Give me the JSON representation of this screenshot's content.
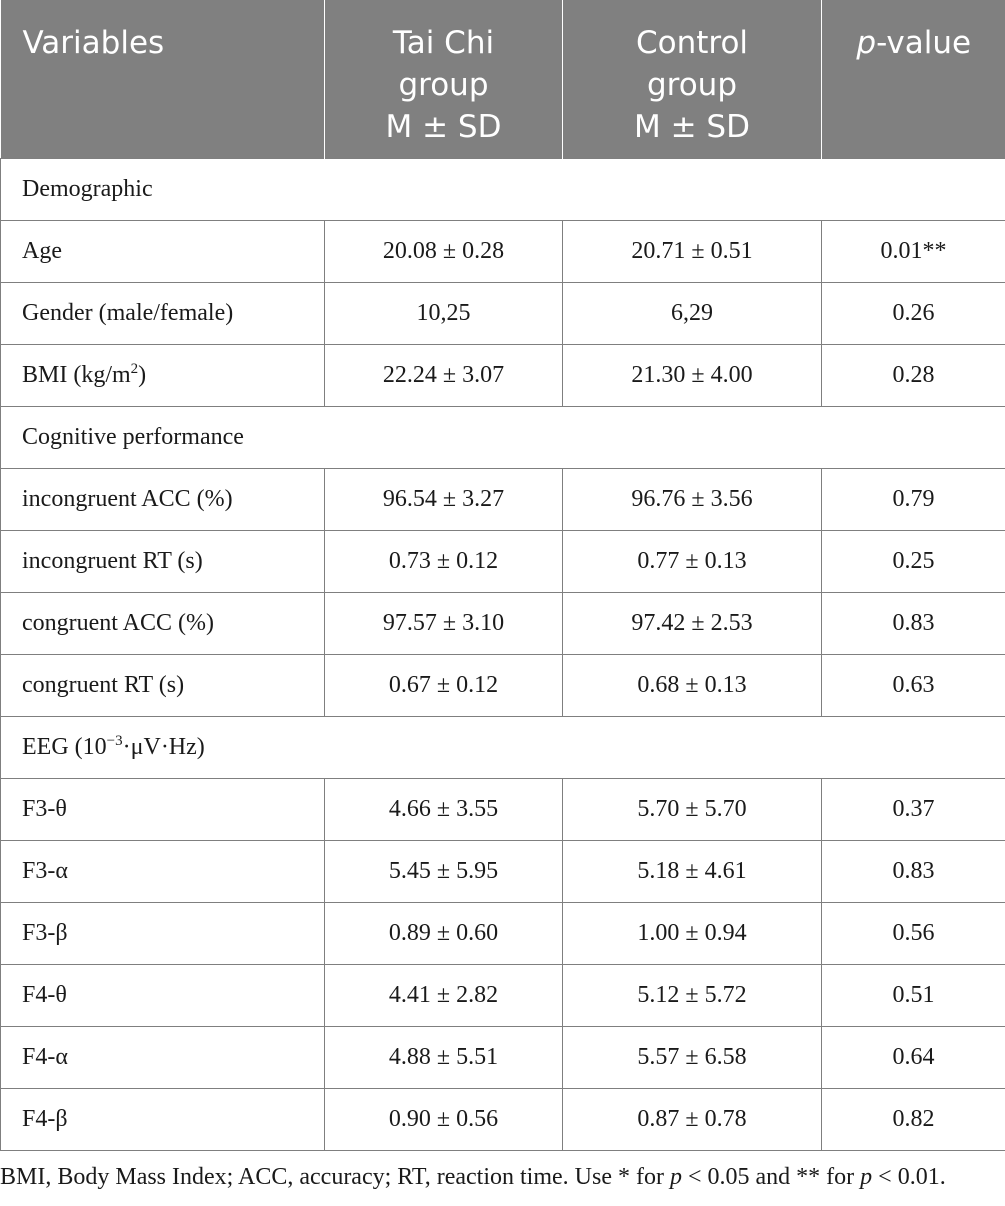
{
  "table": {
    "headers": {
      "variables": "Variables",
      "taichi": [
        "Tai Chi",
        "group",
        "M ± SD"
      ],
      "control": [
        "Control",
        "group",
        "M ± SD"
      ],
      "p_italic": "p",
      "p_rest": "-value"
    },
    "sections": {
      "demographic": "Demographic",
      "cognitive": "Cognitive performance",
      "eeg_pre": "EEG (10",
      "eeg_sup": "−3",
      "eeg_post": "·μV·Hz)"
    },
    "rows": [
      {
        "label": "Age",
        "taichi": "20.08 ± 0.28",
        "control": "20.71 ± 0.51",
        "p": "0.01**"
      },
      {
        "label": "Gender (male/female)",
        "taichi": "10,25",
        "control": "6,29",
        "p": "0.26"
      },
      {
        "label_pre": "BMI (kg/m",
        "label_sup": "2",
        "label_post": ")",
        "taichi": "22.24 ± 3.07",
        "control": "21.30 ± 4.00",
        "p": "0.28"
      },
      {
        "label": "incongruent ACC (%)",
        "taichi": "96.54 ± 3.27",
        "control": "96.76 ± 3.56",
        "p": "0.79"
      },
      {
        "label": "incongruent RT (s)",
        "taichi": "0.73 ± 0.12",
        "control": "0.77 ± 0.13",
        "p": "0.25"
      },
      {
        "label": "congruent ACC (%)",
        "taichi": "97.57 ± 3.10",
        "control": "97.42 ± 2.53",
        "p": "0.83"
      },
      {
        "label": "congruent RT (s)",
        "taichi": "0.67 ± 0.12",
        "control": "0.68 ± 0.13",
        "p": "0.63"
      },
      {
        "label": "F3-θ",
        "taichi": "4.66 ± 3.55",
        "control": "5.70 ± 5.70",
        "p": "0.37"
      },
      {
        "label": "F3-α",
        "taichi": "5.45 ± 5.95",
        "control": "5.18 ± 4.61",
        "p": "0.83"
      },
      {
        "label": "F3-β",
        "taichi": "0.89 ± 0.60",
        "control": "1.00 ± 0.94",
        "p": "0.56"
      },
      {
        "label": "F4-θ",
        "taichi": "4.41 ± 2.82",
        "control": "5.12 ± 5.72",
        "p": "0.51"
      },
      {
        "label": "F4-α",
        "taichi": "4.88 ± 5.51",
        "control": "5.57 ± 6.58",
        "p": "0.64"
      },
      {
        "label": "F4-β",
        "taichi": "0.90 ± 0.56",
        "control": "0.87 ± 0.78",
        "p": "0.82"
      }
    ]
  },
  "footnote": {
    "part1": "BMI, Body Mass Index; ACC, accuracy; RT, reaction time. Use * for ",
    "p1": "p",
    "part2": " < 0.05 and ** for ",
    "p2": "p",
    "part3": " < 0.01."
  },
  "colors": {
    "header_bg": "#808080",
    "header_text": "#ffffff",
    "border": "#7f7f7f"
  }
}
